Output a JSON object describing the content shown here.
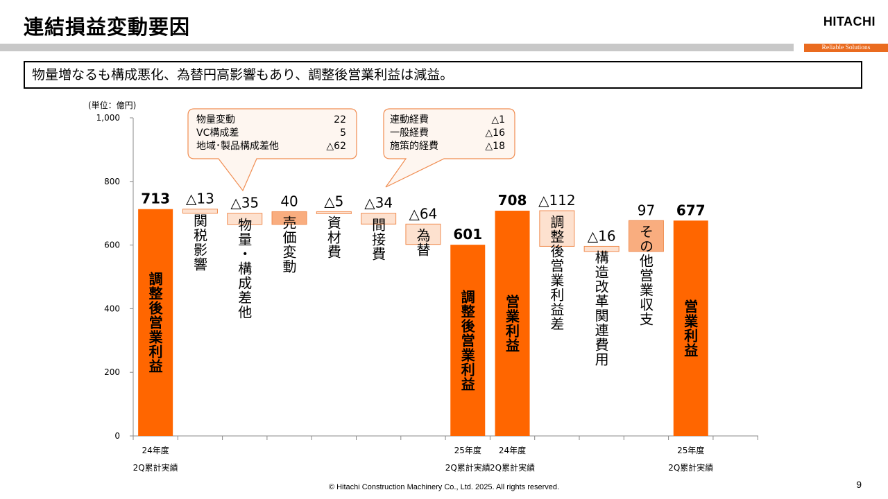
{
  "header": {
    "title": "連結損益変動要因",
    "brand": "HITACHI",
    "tagline": "Reliable Solutions"
  },
  "summary": "物量増なるも構成悪化、為替円高影響もあり、調整後営業利益は減益。",
  "unit_label": "(単位：億円)",
  "footer": "© Hitachi Construction Machinery Co., Ltd. 2025. All rights reserved.",
  "page_number": "9",
  "callouts": [
    {
      "rows": [
        {
          "label": "物量変動",
          "value": "22"
        },
        {
          "label": "VC構成差",
          "value": "5"
        },
        {
          "label": "地域･製品構成差他",
          "value": "△62"
        }
      ]
    },
    {
      "rows": [
        {
          "label": "連動経費",
          "value": "△1"
        },
        {
          "label": "一般経費",
          "value": "△16"
        },
        {
          "label": "施策的経費",
          "value": "△18"
        }
      ]
    }
  ],
  "colors": {
    "total": "#ff6600",
    "decrease": "#fde1cf",
    "increase": "#f9ad7f",
    "border": "#f08c50"
  },
  "chart_data": {
    "type": "bar",
    "subtype": "waterfall",
    "ylim": [
      0,
      1000
    ],
    "yticks": [
      "0",
      "200",
      "400",
      "600",
      "800",
      "1,000"
    ],
    "x_groups": [
      {
        "line1": "24年度",
        "line2": "2Q累計実績"
      },
      {
        "line1": "25年度",
        "line2": "2Q累計実績"
      },
      {
        "line1": "24年度",
        "line2": "2Q累計実績"
      },
      {
        "line1": "25年度",
        "line2": "2Q累計実績"
      }
    ],
    "bars": [
      {
        "label": "調整後営業利益",
        "kind": "total",
        "from": 0,
        "to": 713,
        "value_text": "713"
      },
      {
        "label": "関税影響",
        "kind": "decrease",
        "from": 713,
        "to": 700,
        "value_text": "△13"
      },
      {
        "label": "物量・構成差他",
        "kind": "decrease",
        "from": 700,
        "to": 665,
        "value_text": "△35"
      },
      {
        "label": "売価変動",
        "kind": "increase",
        "from": 665,
        "to": 705,
        "value_text": "40"
      },
      {
        "label": "資材費",
        "kind": "decrease",
        "from": 705,
        "to": 700,
        "value_text": "△5"
      },
      {
        "label": "間接費",
        "kind": "decrease",
        "from": 700,
        "to": 666,
        "value_text": "△34"
      },
      {
        "label": "為替",
        "kind": "decrease",
        "from": 666,
        "to": 602,
        "value_text": "△64"
      },
      {
        "label": "調整後営業利益",
        "kind": "total",
        "from": 0,
        "to": 601,
        "value_text": "601"
      },
      {
        "label": "営業利益",
        "kind": "total",
        "from": 0,
        "to": 708,
        "value_text": "708"
      },
      {
        "label": "調整後営業利益差",
        "kind": "decrease",
        "from": 708,
        "to": 596,
        "value_text": "△112"
      },
      {
        "label": "構造改革関連費用",
        "kind": "decrease",
        "from": 596,
        "to": 580,
        "value_text": "△16"
      },
      {
        "label": "その他営業収支",
        "kind": "increase",
        "from": 580,
        "to": 677,
        "value_text": "97"
      },
      {
        "label": "営業利益",
        "kind": "total",
        "from": 0,
        "to": 677,
        "value_text": "677"
      }
    ]
  }
}
